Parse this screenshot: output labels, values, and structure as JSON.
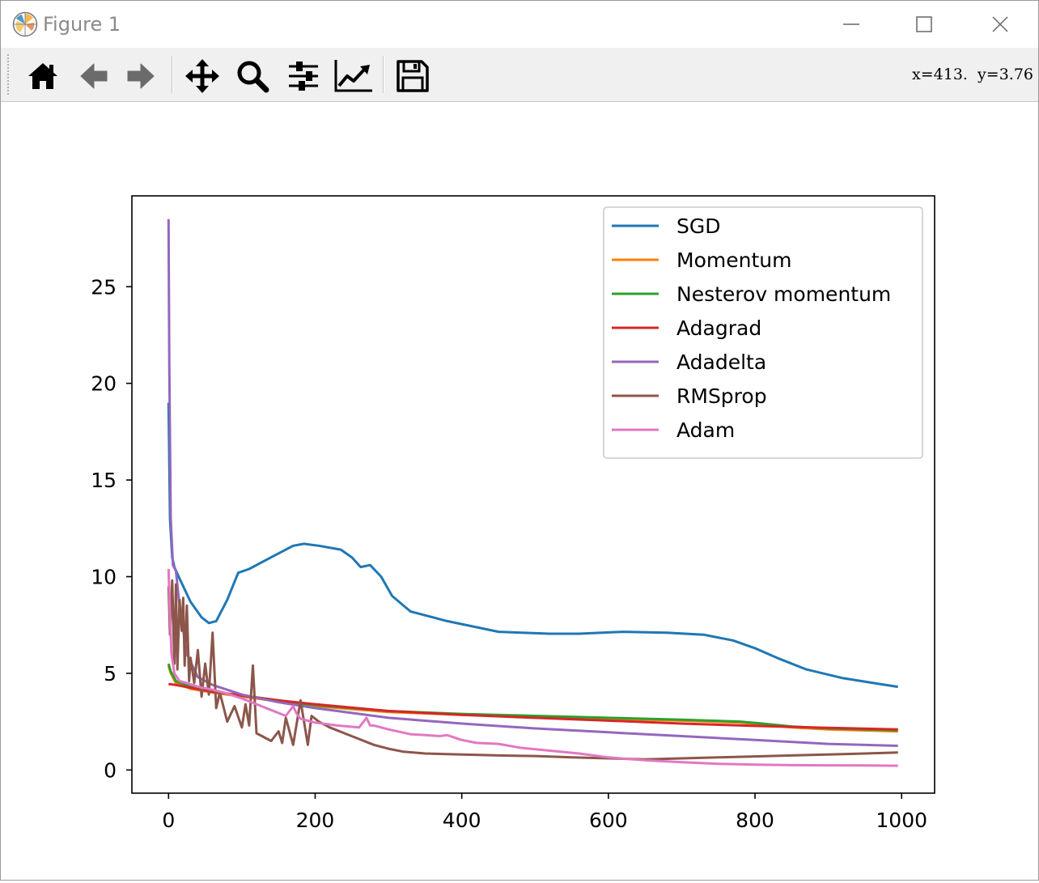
{
  "window": {
    "title": "Figure 1"
  },
  "toolbar": {
    "buttons": [
      {
        "icon": "home-icon",
        "tooltip": "Home"
      },
      {
        "icon": "back-arrow-icon",
        "tooltip": "Back"
      },
      {
        "icon": "forward-arrow-icon",
        "tooltip": "Forward"
      },
      {
        "icon": "pan-icon",
        "tooltip": "Pan"
      },
      {
        "icon": "zoom-icon",
        "tooltip": "Zoom"
      },
      {
        "icon": "subplots-config-icon",
        "tooltip": "Configure subplots"
      },
      {
        "icon": "edit-axis-icon",
        "tooltip": "Edit axis"
      },
      {
        "icon": "save-icon",
        "tooltip": "Save"
      }
    ],
    "coords_text": "x=413.  y=3.76"
  },
  "chart_data": {
    "type": "line",
    "title": "",
    "xlabel": "",
    "ylabel": "",
    "xlim": [
      -50,
      1045
    ],
    "ylim": [
      -1.2,
      29.7
    ],
    "xticks": [
      0,
      200,
      400,
      600,
      800,
      1000
    ],
    "yticks": [
      0,
      5,
      10,
      15,
      20,
      25
    ],
    "grid": false,
    "legend_position": "upper right",
    "series": [
      {
        "name": "SGD",
        "color": "#1f77b4",
        "x": [
          0,
          2,
          5,
          8,
          15,
          30,
          45,
          55,
          65,
          80,
          95,
          110,
          140,
          170,
          185,
          205,
          235,
          250,
          262,
          275,
          290,
          305,
          330,
          380,
          450,
          520,
          560,
          620,
          680,
          730,
          770,
          800,
          830,
          870,
          920,
          970,
          995
        ],
        "y": [
          19,
          13,
          11,
          10.5,
          9.9,
          8.7,
          7.9,
          7.6,
          7.7,
          8.8,
          10.2,
          10.4,
          11,
          11.6,
          11.7,
          11.6,
          11.4,
          11,
          10.5,
          10.6,
          10,
          9,
          8.2,
          7.7,
          7.15,
          7.05,
          7.05,
          7.15,
          7.1,
          7,
          6.7,
          6.3,
          5.8,
          5.2,
          4.75,
          4.45,
          4.3
        ]
      },
      {
        "name": "Momentum",
        "color": "#ff7f0e",
        "x": [
          0,
          3,
          10,
          30,
          60,
          100,
          200,
          300,
          400,
          500,
          600,
          700,
          780,
          810,
          850,
          900,
          995
        ],
        "y": [
          5.4,
          5,
          4.5,
          4.2,
          4,
          3.8,
          3.3,
          3.0,
          2.85,
          2.75,
          2.65,
          2.55,
          2.45,
          2.35,
          2.2,
          2.1,
          2.0
        ]
      },
      {
        "name": "Nesterov momentum",
        "color": "#2ca02c",
        "x": [
          0,
          3,
          10,
          30,
          60,
          100,
          200,
          300,
          400,
          500,
          600,
          700,
          780,
          810,
          850,
          900,
          995
        ],
        "y": [
          5.5,
          5.1,
          4.6,
          4.3,
          4.05,
          3.85,
          3.35,
          3.05,
          2.9,
          2.8,
          2.7,
          2.6,
          2.5,
          2.4,
          2.25,
          2.15,
          2.05
        ]
      },
      {
        "name": "Adagrad",
        "color": "#d62728",
        "x": [
          0,
          10,
          30,
          60,
          100,
          150,
          200,
          300,
          400,
          500,
          600,
          700,
          800,
          900,
          995
        ],
        "y": [
          4.45,
          4.4,
          4.25,
          4.05,
          3.85,
          3.6,
          3.4,
          3.05,
          2.85,
          2.7,
          2.55,
          2.4,
          2.28,
          2.18,
          2.1
        ]
      },
      {
        "name": "Adadelta",
        "color": "#9467bd",
        "x": [
          0,
          1,
          3,
          6,
          10,
          15,
          25,
          40,
          60,
          100,
          150,
          200,
          300,
          400,
          500,
          600,
          700,
          800,
          900,
          995
        ],
        "y": [
          28.5,
          21,
          13,
          10.6,
          10.3,
          8.5,
          6,
          4.8,
          4.4,
          3.9,
          3.5,
          3.2,
          2.7,
          2.4,
          2.15,
          1.95,
          1.75,
          1.55,
          1.35,
          1.25
        ]
      },
      {
        "name": "RMSprop",
        "color": "#8c564b",
        "x": [
          0,
          2,
          5,
          8,
          10,
          12,
          15,
          18,
          20,
          22,
          25,
          28,
          30,
          35,
          40,
          45,
          50,
          55,
          60,
          65,
          70,
          80,
          90,
          100,
          105,
          110,
          115,
          120,
          140,
          150,
          155,
          160,
          170,
          180,
          190,
          195,
          205,
          220,
          240,
          260,
          280,
          300,
          320,
          350,
          400,
          450,
          500,
          550,
          600,
          650,
          700,
          750,
          800,
          850,
          900,
          950,
          995
        ],
        "y": [
          9.5,
          7,
          9.8,
          5.5,
          9.6,
          5.2,
          8.8,
          7.2,
          8.9,
          5.4,
          8.5,
          4.6,
          5.8,
          4.5,
          6.2,
          3.8,
          5.5,
          3.9,
          7.1,
          3.2,
          4.0,
          2.5,
          3.3,
          2.2,
          3.4,
          2.3,
          5.4,
          1.9,
          1.5,
          2.0,
          1.4,
          2.7,
          1.3,
          3.6,
          1.3,
          2.8,
          2.5,
          2.2,
          1.9,
          1.6,
          1.3,
          1.1,
          0.95,
          0.85,
          0.8,
          0.75,
          0.72,
          0.65,
          0.6,
          0.55,
          0.6,
          0.65,
          0.7,
          0.75,
          0.8,
          0.85,
          0.9
        ]
      },
      {
        "name": "Adam",
        "color": "#e377c2",
        "x": [
          0,
          2,
          4,
          8,
          15,
          25,
          40,
          60,
          80,
          100,
          120,
          140,
          160,
          170,
          175,
          180,
          200,
          230,
          260,
          270,
          275,
          280,
          300,
          330,
          350,
          370,
          380,
          400,
          420,
          450,
          480,
          520,
          560,
          600,
          650,
          700,
          750,
          800,
          850,
          900,
          950,
          995
        ],
        "y": [
          10.4,
          8,
          6,
          5,
          4.6,
          4.5,
          4.3,
          4.15,
          3.95,
          3.7,
          3.4,
          3.1,
          2.8,
          3.3,
          2.9,
          2.65,
          2.45,
          2.3,
          2.2,
          2.7,
          2.3,
          2.3,
          2.1,
          1.85,
          1.8,
          1.75,
          1.8,
          1.55,
          1.4,
          1.35,
          1.15,
          1.0,
          0.85,
          0.65,
          0.5,
          0.4,
          0.32,
          0.28,
          0.25,
          0.24,
          0.23,
          0.22
        ]
      }
    ]
  }
}
